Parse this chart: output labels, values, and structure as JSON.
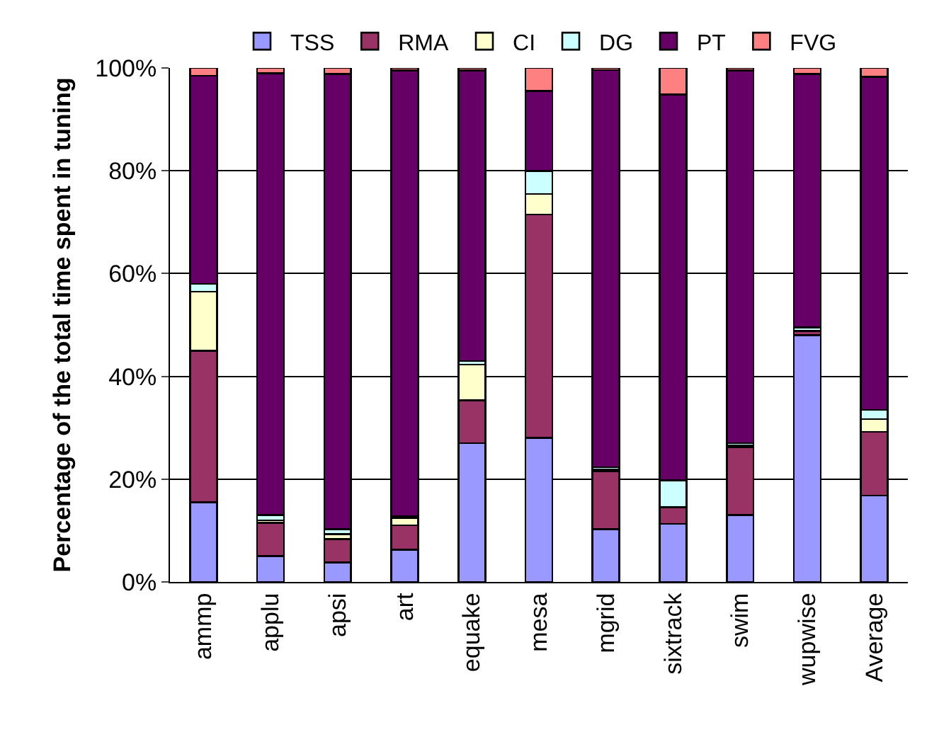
{
  "chart_data": {
    "type": "bar",
    "stacked": true,
    "ylabel": "Percentage of the total time spent in tuning",
    "categories": [
      "ammp",
      "applu",
      "apsi",
      "art",
      "equake",
      "mesa",
      "mgrid",
      "sixtrack",
      "swim",
      "wupwise",
      "Average"
    ],
    "series": [
      {
        "name": "TSS",
        "color": "#9999ff",
        "values": [
          15.5,
          5,
          3.8,
          6.3,
          27,
          28,
          10.3,
          11.3,
          13,
          48,
          16.8
        ]
      },
      {
        "name": "RMA",
        "color": "#993366",
        "values": [
          29.5,
          6.5,
          4.5,
          4.7,
          8.3,
          43.5,
          11.2,
          3.2,
          13.2,
          0.8,
          12.4
        ]
      },
      {
        "name": "CI",
        "color": "#ffffcc",
        "values": [
          11.5,
          0.5,
          1,
          1.5,
          7,
          4,
          0.3,
          0,
          0.3,
          0,
          2.5
        ]
      },
      {
        "name": "DG",
        "color": "#ccffff",
        "values": [
          1.5,
          1,
          1,
          0.3,
          0.7,
          4.5,
          0.5,
          5.3,
          0.5,
          0.7,
          1.8
        ]
      },
      {
        "name": "PT",
        "color": "#660066",
        "values": [
          40.5,
          86,
          88.5,
          86.7,
          56.5,
          15.5,
          77.3,
          75,
          72.5,
          49.3,
          64.8
        ]
      },
      {
        "name": "FVG",
        "color": "#ff8080",
        "values": [
          1.5,
          1,
          1.2,
          0.5,
          0.5,
          4.5,
          0.4,
          5.2,
          0.5,
          1.2,
          1.7
        ]
      }
    ],
    "ylim": [
      0,
      100
    ],
    "yticks": [
      {
        "value": 0,
        "label": "0%"
      },
      {
        "value": 20,
        "label": "20%"
      },
      {
        "value": 40,
        "label": "40%"
      },
      {
        "value": 60,
        "label": "60%"
      },
      {
        "value": 80,
        "label": "80%"
      },
      {
        "value": 100,
        "label": "100%"
      }
    ],
    "grid": "y",
    "legend": "top"
  }
}
